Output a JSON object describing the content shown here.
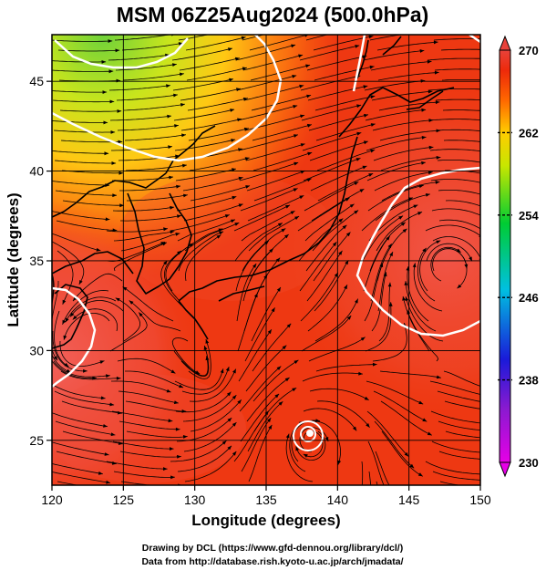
{
  "figure": {
    "title": "MSM 06Z25Aug2024 (500.0hPa)",
    "credits": [
      "Drawing by DCL (https://www.gfd-dennou.org/library/dcl/)",
      "Data from http://database.rish.kyoto-u.ac.jp/arch/jmadata/"
    ]
  },
  "chart_data": {
    "type": "heatmap",
    "xlabel": "Longitude (degrees)",
    "ylabel": "Latitude  (degrees)",
    "xlim": [
      120,
      150
    ],
    "ylim": [
      22.5,
      47.6
    ],
    "x_ticks": [
      "120",
      "125",
      "130",
      "135",
      "140",
      "145",
      "150"
    ],
    "y_ticks": [
      "25",
      "30",
      "35",
      "40",
      "45"
    ],
    "grid": true,
    "colorbar": {
      "range": [
        230,
        270
      ],
      "ticks": [
        "270",
        "262",
        "254",
        "246",
        "238",
        "230"
      ],
      "colors": [
        "#e600e6",
        "#1a1ad9",
        "#00c0e0",
        "#00cc33",
        "#c8e600",
        "#ffcc00",
        "#ff6600",
        "#ee2a0a",
        "#e8423a"
      ]
    },
    "overlays": [
      "temperature contours (white)",
      "streamlines (black)",
      "coastlines (black)"
    ],
    "features": [
      {
        "kind": "cold trough",
        "lat": 47,
        "lon": 122
      },
      {
        "kind": "cyclonic vortex",
        "lat": 35.5,
        "lon": 145.5
      },
      {
        "kind": "typhoon vortex",
        "lat": 25,
        "lon": 138
      }
    ]
  }
}
